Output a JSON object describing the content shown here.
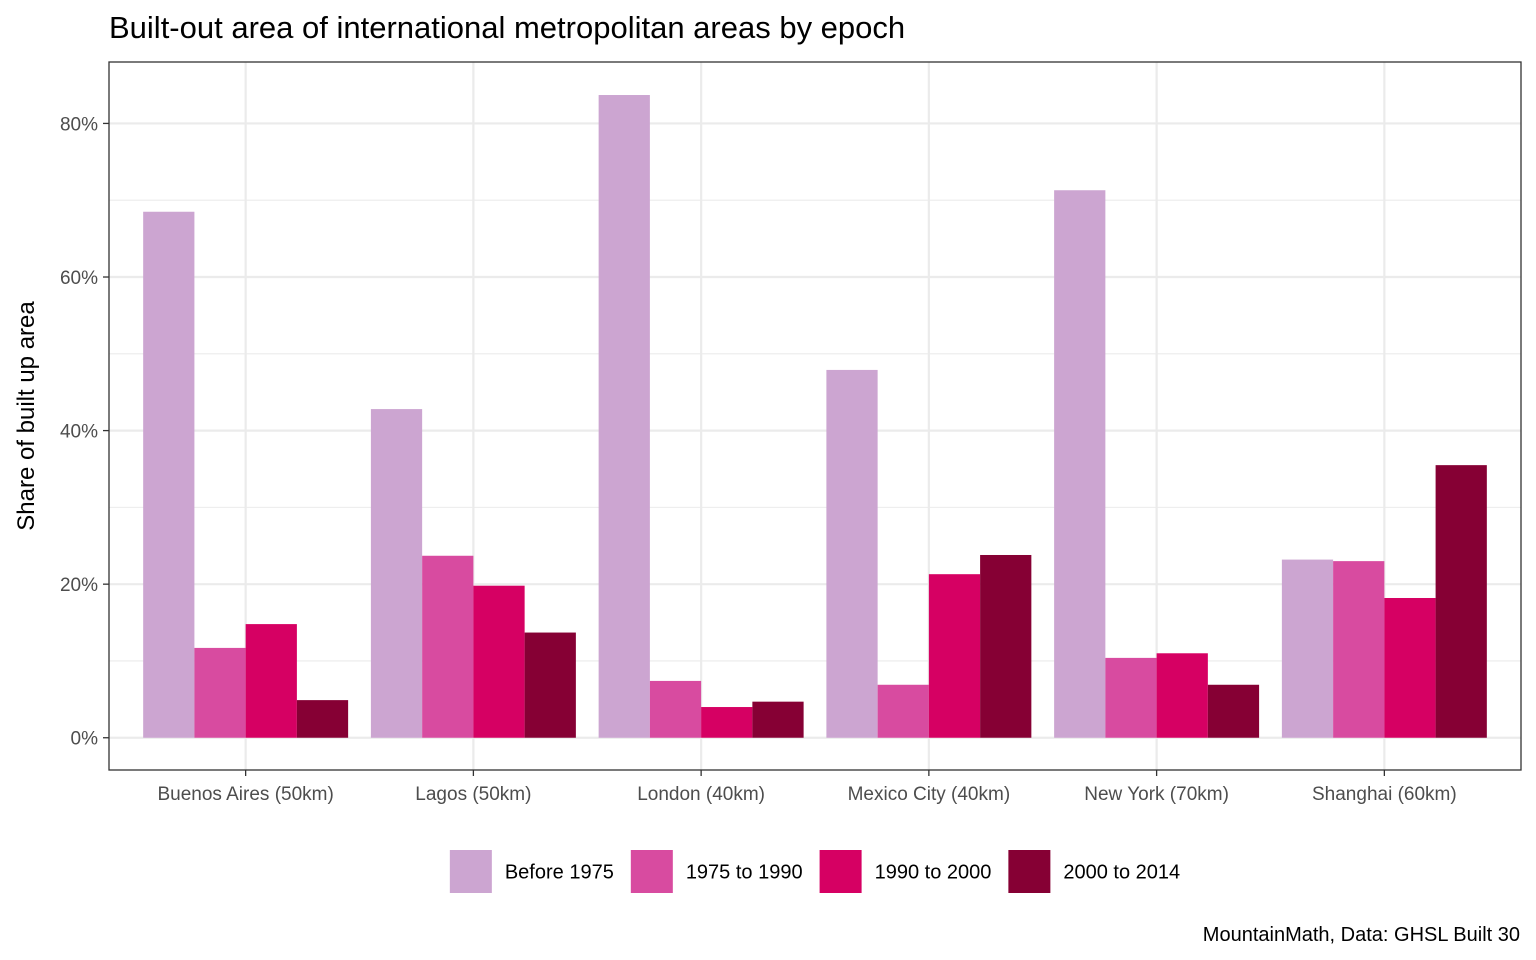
{
  "chart_data": {
    "type": "bar",
    "title": "Built-out area of international metropolitan areas by epoch",
    "xlabel": "",
    "ylabel": "Share of built up area",
    "caption": "MountainMath, Data: GHSL Built 30",
    "categories": [
      "Buenos Aires (50km)",
      "Lagos (50km)",
      "London (40km)",
      "Mexico City (40km)",
      "New York (70km)",
      "Shanghai (60km)"
    ],
    "series": [
      {
        "name": "Before 1975",
        "color": "#cca5d1",
        "values": [
          0.685,
          0.428,
          0.837,
          0.479,
          0.713,
          0.232
        ]
      },
      {
        "name": "1975 to 1990",
        "color": "#d84ba0",
        "values": [
          0.117,
          0.237,
          0.074,
          0.069,
          0.104,
          0.23
        ]
      },
      {
        "name": "1990 to 2000",
        "color": "#d60063",
        "values": [
          0.148,
          0.198,
          0.04,
          0.213,
          0.11,
          0.182
        ]
      },
      {
        "name": "2000 to 2014",
        "color": "#860034",
        "values": [
          0.049,
          0.137,
          0.047,
          0.238,
          0.069,
          0.355
        ]
      }
    ],
    "y_ticks": [
      0,
      0.2,
      0.4,
      0.6,
      0.8
    ],
    "y_tick_labels": [
      "0%",
      "20%",
      "40%",
      "60%",
      "80%"
    ],
    "ylim": [
      -0.042,
      0.88
    ],
    "grid": true,
    "legend_position": "bottom"
  }
}
